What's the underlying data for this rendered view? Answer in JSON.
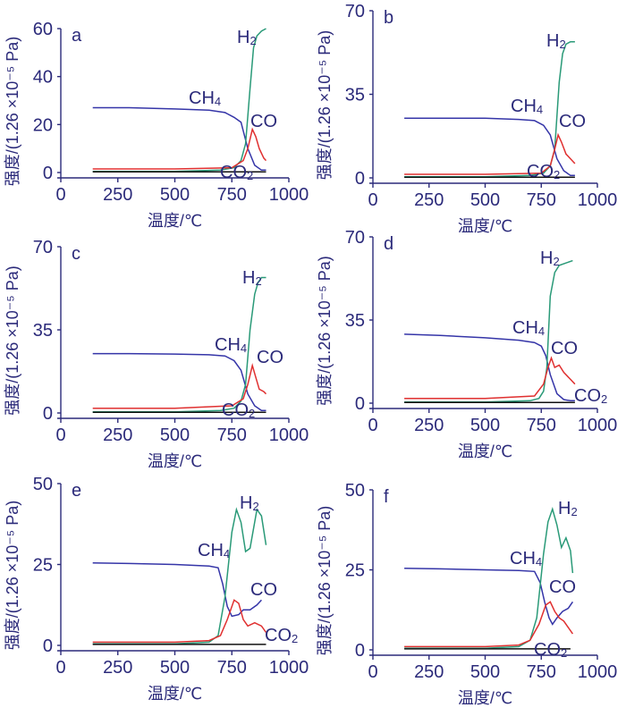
{
  "chart_data": [
    {
      "type": "line",
      "panel_label": "a",
      "xlabel": "温度/℃",
      "ylabel": "强度/(1.26 ×10⁻⁵ Pa)",
      "xlim": [
        0,
        1000
      ],
      "ylim": [
        0,
        60
      ],
      "x_ticks": [
        0,
        250,
        500,
        750,
        1000
      ],
      "y_ticks": [
        0,
        20,
        40,
        60
      ],
      "series": [
        {
          "name": "CH4",
          "label_text": [
            "CH",
            "4"
          ],
          "color": "#3535a8",
          "x": [
            140,
            300,
            500,
            650,
            720,
            760,
            790,
            820,
            850,
            880,
            900
          ],
          "y": [
            27,
            27,
            26.5,
            26,
            25,
            23,
            21,
            10,
            3,
            1,
            1
          ]
        },
        {
          "name": "H2",
          "label_text": [
            "H",
            "2"
          ],
          "color": "#2a9a78",
          "x": [
            140,
            500,
            700,
            760,
            790,
            810,
            830,
            845,
            860,
            880,
            900
          ],
          "y": [
            0.5,
            0.5,
            1,
            2,
            5,
            12,
            35,
            52,
            57,
            59,
            60
          ]
        },
        {
          "name": "CO",
          "label_text": [
            "CO",
            ""
          ],
          "color": "#e03030",
          "x": [
            140,
            500,
            750,
            800,
            820,
            840,
            855,
            870,
            890,
            900
          ],
          "y": [
            1.5,
            1.5,
            2,
            5,
            10,
            18,
            15,
            10,
            6,
            5
          ]
        },
        {
          "name": "CO2",
          "label_text": [
            "CO",
            "2"
          ],
          "color": "#111111",
          "x": [
            140,
            900
          ],
          "y": [
            0.3,
            0.3
          ]
        }
      ]
    },
    {
      "type": "line",
      "panel_label": "b",
      "xlabel": "温度/℃",
      "ylabel": "强度/(1.26 ×10⁻⁵ Pa)",
      "xlim": [
        0,
        1000
      ],
      "ylim": [
        0,
        70
      ],
      "x_ticks": [
        0,
        250,
        500,
        750,
        1000
      ],
      "y_ticks": [
        0,
        35,
        70
      ],
      "series": [
        {
          "name": "CH4",
          "label_text": [
            "CH",
            "4"
          ],
          "color": "#3535a8",
          "x": [
            140,
            300,
            500,
            650,
            720,
            760,
            790,
            820,
            850,
            880,
            900
          ],
          "y": [
            25,
            25,
            25,
            24.5,
            24,
            22,
            18,
            8,
            3,
            1,
            1
          ]
        },
        {
          "name": "H2",
          "label_text": [
            "H",
            "2"
          ],
          "color": "#2a9a78",
          "x": [
            140,
            500,
            700,
            760,
            790,
            810,
            830,
            845,
            860,
            880,
            900
          ],
          "y": [
            0.5,
            0.5,
            1,
            2,
            5,
            12,
            40,
            52,
            56,
            57,
            57
          ]
        },
        {
          "name": "CO",
          "label_text": [
            "CO",
            ""
          ],
          "color": "#e03030",
          "x": [
            140,
            500,
            750,
            790,
            810,
            825,
            840,
            860,
            880,
            900
          ],
          "y": [
            1.5,
            1.5,
            2,
            5,
            12,
            18,
            15,
            10,
            8,
            6
          ]
        },
        {
          "name": "CO2",
          "label_text": [
            "CO",
            "2"
          ],
          "color": "#111111",
          "x": [
            140,
            900
          ],
          "y": [
            0.3,
            0.3
          ]
        }
      ]
    },
    {
      "type": "line",
      "panel_label": "c",
      "xlabel": "温度/℃",
      "ylabel": "强度/(1.26 ×10⁻⁵ Pa)",
      "xlim": [
        0,
        1000
      ],
      "ylim": [
        0,
        70
      ],
      "x_ticks": [
        0,
        250,
        500,
        750,
        1000
      ],
      "y_ticks": [
        0,
        35,
        70
      ],
      "series": [
        {
          "name": "CH4",
          "label_text": [
            "CH",
            "4"
          ],
          "color": "#3535a8",
          "x": [
            140,
            300,
            500,
            650,
            720,
            760,
            790,
            820,
            850,
            880,
            900
          ],
          "y": [
            25,
            25,
            24.8,
            24.5,
            24,
            22,
            18,
            8,
            3,
            1,
            1
          ]
        },
        {
          "name": "H2",
          "label_text": [
            "H",
            "2"
          ],
          "color": "#2a9a78",
          "x": [
            140,
            500,
            700,
            760,
            790,
            810,
            830,
            850,
            865,
            880,
            900
          ],
          "y": [
            0.5,
            0.5,
            1,
            2,
            5,
            12,
            35,
            50,
            55,
            57,
            57
          ]
        },
        {
          "name": "CO",
          "label_text": [
            "CO",
            ""
          ],
          "color": "#e03030",
          "x": [
            140,
            500,
            750,
            800,
            820,
            840,
            855,
            870,
            890,
            900
          ],
          "y": [
            2,
            2,
            3,
            6,
            12,
            20,
            15,
            10,
            9,
            8
          ]
        },
        {
          "name": "CO2",
          "label_text": [
            "CO",
            "2"
          ],
          "color": "#111111",
          "x": [
            140,
            900
          ],
          "y": [
            0.3,
            0.3
          ]
        }
      ]
    },
    {
      "type": "line",
      "panel_label": "d",
      "xlabel": "温度/℃",
      "ylabel": "强度/(1.26 ×10⁻⁵ Pa)",
      "xlim": [
        0,
        1000
      ],
      "ylim": [
        0,
        70
      ],
      "x_ticks": [
        0,
        250,
        500,
        750,
        1000
      ],
      "y_ticks": [
        0,
        35,
        70
      ],
      "series": [
        {
          "name": "CH4",
          "label_text": [
            "CH",
            "4"
          ],
          "color": "#3535a8",
          "x": [
            140,
            300,
            500,
            650,
            720,
            750,
            770,
            790,
            820,
            850,
            880,
            900
          ],
          "y": [
            29,
            28.5,
            27.5,
            26.5,
            25.5,
            24,
            20,
            12,
            4,
            1.5,
            1,
            1
          ]
        },
        {
          "name": "H2",
          "label_text": [
            "H",
            "2"
          ],
          "color": "#2a9a78",
          "x": [
            140,
            500,
            700,
            740,
            760,
            775,
            790,
            810,
            830,
            860,
            890
          ],
          "y": [
            0.5,
            0.5,
            1,
            2,
            5,
            15,
            45,
            55,
            58,
            59,
            60
          ]
        },
        {
          "name": "CO",
          "label_text": [
            "CO",
            ""
          ],
          "color": "#e03030",
          "x": [
            140,
            500,
            720,
            760,
            780,
            795,
            810,
            830,
            850,
            880,
            900
          ],
          "y": [
            2,
            2,
            3,
            8,
            15,
            19,
            15,
            16,
            13,
            10,
            8
          ]
        },
        {
          "name": "CO2",
          "label_text": [
            "CO",
            "2"
          ],
          "color": "#111111",
          "x": [
            140,
            900
          ],
          "y": [
            0.3,
            0.3
          ]
        }
      ]
    },
    {
      "type": "line",
      "panel_label": "e",
      "xlabel": "温度/℃",
      "ylabel": "强度/(1.26 ×10⁻⁵ Pa)",
      "xlim": [
        0,
        1000
      ],
      "ylim": [
        0,
        50
      ],
      "x_ticks": [
        0,
        250,
        500,
        750,
        1000
      ],
      "y_ticks": [
        0,
        25,
        50
      ],
      "series": [
        {
          "name": "CH4",
          "label_text": [
            "CH",
            "4"
          ],
          "color": "#3535a8",
          "x": [
            140,
            300,
            500,
            650,
            690,
            710,
            730,
            750,
            780,
            800,
            830,
            860,
            880
          ],
          "y": [
            25.5,
            25.3,
            25,
            24.5,
            24,
            19,
            12,
            9,
            9.5,
            11,
            11,
            12.5,
            14
          ]
        },
        {
          "name": "H2",
          "label_text": [
            "H",
            "2"
          ],
          "color": "#2a9a78",
          "x": [
            140,
            500,
            650,
            690,
            720,
            750,
            770,
            790,
            810,
            830,
            860,
            880,
            900
          ],
          "y": [
            0.5,
            0.5,
            1,
            3,
            15,
            35,
            42,
            38,
            29,
            30,
            42,
            40,
            31
          ]
        },
        {
          "name": "CO",
          "label_text": [
            "CO",
            ""
          ],
          "color": "#e03030",
          "x": [
            140,
            500,
            650,
            700,
            730,
            760,
            780,
            800,
            820,
            850,
            880,
            900
          ],
          "y": [
            1,
            1,
            1.5,
            3,
            8,
            14,
            13,
            8,
            6,
            7,
            6,
            4
          ]
        },
        {
          "name": "CO2",
          "label_text": [
            "CO",
            "2"
          ],
          "color": "#111111",
          "x": [
            140,
            900
          ],
          "y": [
            0.3,
            0.3
          ]
        }
      ]
    },
    {
      "type": "line",
      "panel_label": "f",
      "xlabel": "温度/℃",
      "ylabel": "强度/(1.26 ×10⁻⁵ Pa)",
      "xlim": [
        0,
        1000
      ],
      "ylim": [
        0,
        50
      ],
      "x_ticks": [
        0,
        250,
        500,
        750,
        1000
      ],
      "y_ticks": [
        0,
        25,
        50
      ],
      "series": [
        {
          "name": "CH4",
          "label_text": [
            "CH",
            "4"
          ],
          "color": "#3535a8",
          "x": [
            140,
            300,
            500,
            650,
            720,
            745,
            765,
            785,
            800,
            820,
            845,
            870,
            890
          ],
          "y": [
            25.5,
            25.3,
            25,
            24.8,
            24.5,
            21,
            15,
            10,
            8,
            10,
            12,
            13,
            15
          ]
        },
        {
          "name": "H2",
          "label_text": [
            "H",
            "2"
          ],
          "color": "#2a9a78",
          "x": [
            140,
            500,
            650,
            700,
            730,
            760,
            780,
            800,
            820,
            840,
            860,
            880,
            890
          ],
          "y": [
            0.5,
            0.5,
            1,
            3,
            10,
            30,
            40,
            44,
            39,
            32,
            35,
            31,
            24
          ]
        },
        {
          "name": "CO",
          "label_text": [
            "CO",
            ""
          ],
          "color": "#e03030",
          "x": [
            140,
            500,
            650,
            700,
            740,
            770,
            790,
            810,
            830,
            850,
            870,
            890
          ],
          "y": [
            1,
            1,
            1.5,
            3,
            8,
            14,
            15,
            12,
            10,
            9,
            7,
            5
          ]
        },
        {
          "name": "CO2",
          "label_text": [
            "CO",
            "2"
          ],
          "color": "#111111",
          "x": [
            140,
            880
          ],
          "y": [
            0.3,
            0.3
          ]
        }
      ]
    }
  ]
}
